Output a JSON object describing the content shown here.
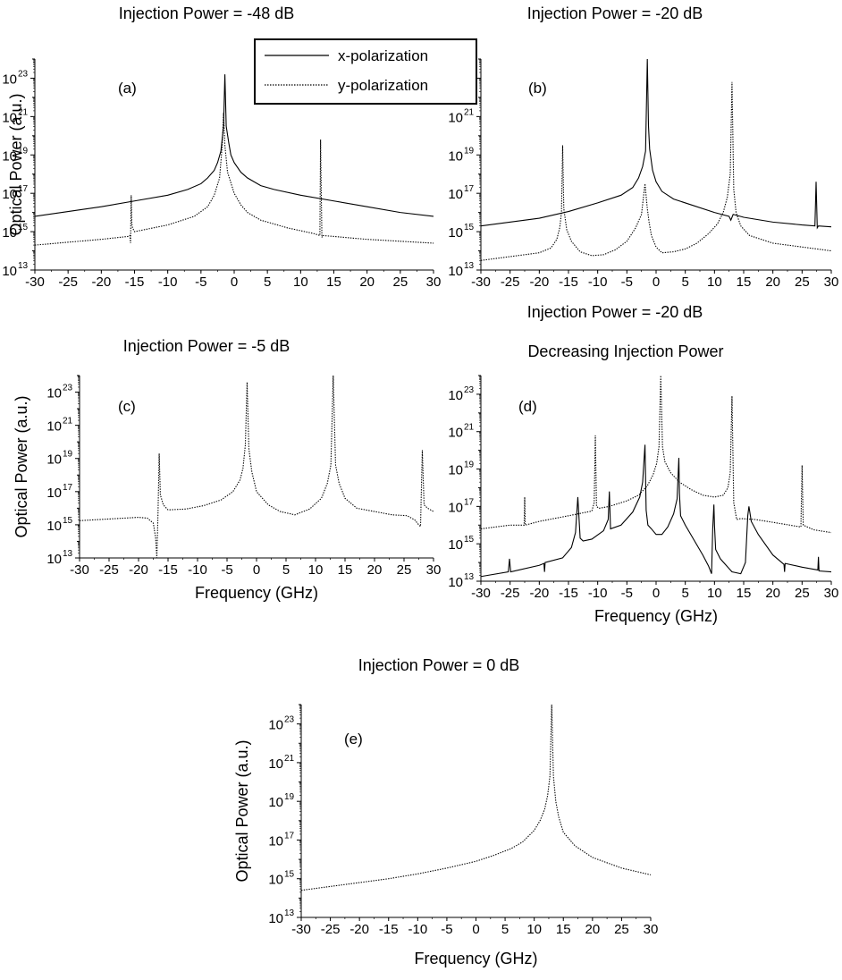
{
  "figure": {
    "legend": {
      "entries": [
        {
          "label": "x-polarization",
          "style": "solid"
        },
        {
          "label": "y-polarization",
          "style": "dotted"
        }
      ]
    }
  },
  "chart_data": [
    {
      "id": "a",
      "type": "line",
      "title": "Injection Power = -48 dB",
      "panel_label": "(a)",
      "ylabel": "Optical Power (a.u.)",
      "xlabel": "",
      "xlim": [
        -30,
        30
      ],
      "ylim_log10": [
        13,
        24
      ],
      "xticks": [
        -30,
        -25,
        -20,
        -15,
        -10,
        -5,
        0,
        5,
        10,
        15,
        20,
        25,
        30
      ],
      "yticks": [
        "10^13",
        "10^15",
        "10^17",
        "10^19",
        "10^21",
        "10^23"
      ],
      "scale": "log",
      "series": [
        {
          "name": "x-polarization",
          "style": "solid",
          "x": [
            -30,
            -25,
            -20,
            -15,
            -10,
            -7,
            -5,
            -4,
            -3,
            -2.5,
            -2,
            -1.6,
            -1.4,
            -1.2,
            -0.8,
            -0.5,
            0,
            1,
            2,
            4,
            6,
            10,
            15,
            20,
            25,
            30
          ],
          "log10_y": [
            15.8,
            16.05,
            16.3,
            16.6,
            16.9,
            17.2,
            17.5,
            17.8,
            18.2,
            18.6,
            19.2,
            20.5,
            23.2,
            20.5,
            19.6,
            19.0,
            18.6,
            18.1,
            17.8,
            17.4,
            17.2,
            16.9,
            16.6,
            16.3,
            16.0,
            15.8
          ]
        },
        {
          "name": "y-polarization",
          "style": "dotted",
          "x": [
            -30,
            -20,
            -16,
            -15.7,
            -15.6,
            -15.5,
            -15.4,
            -15.3,
            -15,
            -10,
            -6,
            -4,
            -3,
            -2.2,
            -1.8,
            -1.6,
            -1.4,
            -1.0,
            0,
            1,
            2,
            4,
            8,
            12,
            12.9,
            13,
            13.1,
            13.2,
            13.3,
            15,
            20,
            25,
            30
          ],
          "log10_y": [
            14.3,
            14.6,
            14.75,
            14.8,
            14.4,
            16.9,
            15.4,
            15.2,
            15.0,
            15.35,
            15.8,
            16.3,
            16.9,
            17.8,
            19.5,
            21.2,
            19.5,
            18.1,
            17.0,
            16.4,
            16.0,
            15.6,
            15.2,
            14.9,
            14.8,
            19.8,
            17.2,
            14.7,
            14.8,
            14.75,
            14.6,
            14.5,
            14.4
          ]
        }
      ]
    },
    {
      "id": "b",
      "type": "line",
      "title": "Injection Power = -20 dB",
      "panel_label": "(b)",
      "ylabel": "",
      "xlabel": "",
      "xlim": [
        -30,
        30
      ],
      "ylim_log10": [
        13,
        24
      ],
      "xticks": [
        -30,
        -25,
        -20,
        -15,
        -10,
        -5,
        0,
        5,
        10,
        15,
        20,
        25,
        30
      ],
      "yticks": [
        "10^13",
        "10^15",
        "10^17",
        "10^19",
        "10^21",
        "10^23"
      ],
      "scale": "log",
      "series": [
        {
          "name": "x-polarization",
          "style": "solid",
          "x": [
            -30,
            -20,
            -15,
            -10,
            -6,
            -4,
            -3,
            -2.3,
            -1.8,
            -1.5,
            -1.3,
            -1.1,
            -0.6,
            0,
            1,
            3,
            6,
            10,
            12.5,
            12.8,
            13.2,
            15,
            20,
            25,
            27.2,
            27.4,
            27.6,
            27.8,
            30
          ],
          "log10_y": [
            15.3,
            15.7,
            16.05,
            16.5,
            16.9,
            17.3,
            17.8,
            18.4,
            19.2,
            24.0,
            20.5,
            19.3,
            18.2,
            17.6,
            17.1,
            16.7,
            16.4,
            16.0,
            15.8,
            15.6,
            15.9,
            15.75,
            15.5,
            15.35,
            15.3,
            17.6,
            15.2,
            15.3,
            15.25
          ]
        },
        {
          "name": "y-polarization",
          "style": "dotted",
          "x": [
            -30,
            -25,
            -20,
            -18,
            -17,
            -16.5,
            -16.2,
            -16,
            -15.8,
            -15.3,
            -14.5,
            -13,
            -11,
            -9,
            -7,
            -5,
            -3.5,
            -2.5,
            -1.9,
            -1.5,
            -1.2,
            -0.8,
            0,
            1,
            3,
            5,
            7,
            9,
            10.5,
            11.5,
            12.2,
            12.7,
            13,
            13.3,
            13.7,
            14.5,
            16,
            18,
            20,
            25,
            30
          ],
          "log10_y": [
            13.5,
            13.7,
            13.9,
            14.15,
            14.6,
            15.2,
            16.0,
            19.5,
            16.2,
            15.1,
            14.5,
            13.95,
            13.75,
            13.8,
            14.05,
            14.5,
            15.2,
            15.9,
            17.5,
            16.2,
            15.5,
            14.8,
            14.2,
            13.9,
            13.95,
            14.1,
            14.4,
            14.9,
            15.4,
            16.0,
            16.8,
            18.0,
            22.8,
            17.2,
            16.0,
            15.3,
            14.8,
            14.6,
            14.4,
            14.2,
            14.0
          ]
        }
      ]
    },
    {
      "id": "c",
      "type": "line",
      "title": "Injection Power = -5 dB",
      "panel_label": "(c)",
      "ylabel": "Optical Power (a.u.)",
      "xlabel": "Frequency (GHz)",
      "xlim": [
        -30,
        30
      ],
      "ylim_log10": [
        13,
        24
      ],
      "xticks": [
        -30,
        -25,
        -20,
        -15,
        -10,
        -5,
        0,
        5,
        10,
        15,
        20,
        25,
        30
      ],
      "yticks": [
        "10^13",
        "10^15",
        "10^17",
        "10^19",
        "10^21",
        "10^23"
      ],
      "scale": "log",
      "series": [
        {
          "name": "y-polarization",
          "style": "dotted",
          "x": [
            -30,
            -25,
            -20,
            -18.5,
            -17.5,
            -17.1,
            -16.9,
            -16.7,
            -16.5,
            -16.3,
            -15.8,
            -15,
            -12,
            -9,
            -6,
            -4,
            -2.8,
            -2.3,
            -1.9,
            -1.6,
            -1.3,
            -0.8,
            0,
            2,
            4,
            6.5,
            9,
            11,
            12,
            12.6,
            13,
            13.4,
            14,
            15,
            17,
            20,
            23,
            25.5,
            26.8,
            27.5,
            27.8,
            28.1,
            28.4,
            29,
            30
          ],
          "log10_y": [
            15.25,
            15.35,
            15.45,
            15.4,
            15.1,
            14.2,
            13.0,
            15.7,
            19.3,
            16.8,
            16.2,
            15.9,
            15.95,
            16.15,
            16.5,
            17.0,
            17.7,
            18.4,
            19.8,
            23.6,
            19.6,
            18.2,
            17.0,
            16.2,
            15.8,
            15.6,
            15.95,
            16.6,
            17.5,
            18.6,
            24.0,
            18.6,
            17.5,
            16.6,
            16.0,
            15.8,
            15.6,
            15.55,
            15.3,
            15.0,
            14.9,
            19.5,
            16.2,
            16.0,
            15.8
          ]
        }
      ]
    },
    {
      "id": "d",
      "type": "line",
      "title": "Injection Power = -20 dB",
      "subtitle": "Decreasing Injection Power",
      "panel_label": "(d)",
      "ylabel": "",
      "xlabel": "Frequency (GHz)",
      "xlim": [
        -30,
        30
      ],
      "ylim_log10": [
        13,
        24
      ],
      "xticks": [
        -30,
        -25,
        -20,
        -15,
        -10,
        -5,
        0,
        5,
        10,
        15,
        20,
        25,
        30
      ],
      "yticks": [
        "10^13",
        "10^15",
        "10^17",
        "10^19",
        "10^21",
        "10^23"
      ],
      "scale": "log",
      "series": [
        {
          "name": "x-polarization",
          "style": "solid",
          "x": [
            -30,
            -25.3,
            -25.1,
            -24.9,
            -20,
            -19.2,
            -19.1,
            -19.0,
            -16,
            -14.5,
            -13.8,
            -13.4,
            -13.0,
            -12.5,
            -11,
            -9,
            -8.2,
            -8.0,
            -7.8,
            -6,
            -4,
            -2.8,
            -2.3,
            -1.9,
            -1.7,
            -1.4,
            -0.8,
            0,
            1,
            2,
            3,
            3.6,
            3.9,
            4.0,
            4.2,
            5,
            6.5,
            8,
            9,
            9.5,
            9.7,
            9.9,
            10.0,
            10.2,
            11,
            13,
            14.5,
            15.3,
            15.7,
            15.9,
            16.3,
            17.5,
            20,
            21.9,
            22.0,
            22.1,
            25,
            27.7,
            27.8,
            27.9,
            30
          ],
          "log10_y": [
            13.25,
            13.5,
            14.2,
            13.5,
            13.85,
            13.95,
            13.5,
            14.0,
            14.25,
            14.8,
            15.6,
            17.5,
            15.3,
            15.15,
            15.25,
            15.7,
            16.3,
            17.8,
            15.8,
            16.0,
            16.7,
            17.5,
            18.3,
            20.3,
            16.8,
            16.0,
            15.8,
            15.5,
            15.5,
            15.9,
            16.6,
            17.4,
            19.6,
            17.7,
            16.5,
            16.0,
            15.2,
            14.4,
            13.8,
            13.4,
            15.8,
            17.1,
            16.0,
            14.7,
            14.2,
            13.5,
            13.4,
            14.0,
            16.5,
            17.0,
            16.2,
            15.5,
            14.4,
            13.9,
            13.5,
            13.95,
            13.75,
            13.6,
            14.3,
            13.55,
            13.5
          ]
        },
        {
          "name": "y-polarization",
          "style": "dotted",
          "x": [
            -30,
            -25,
            -22.6,
            -22.5,
            -22.4,
            -20,
            -15,
            -11,
            -10.6,
            -10.4,
            -10.2,
            -9.8,
            -8,
            -5,
            -3,
            -1.5,
            -0.5,
            0.1,
            0.5,
            0.8,
            1.1,
            1.5,
            2.5,
            4,
            6,
            8,
            10,
            11.5,
            12.3,
            12.7,
            13.0,
            13.3,
            13.8,
            14.5,
            17,
            20,
            24.8,
            25.0,
            25.2,
            27,
            30
          ],
          "log10_y": [
            15.8,
            16.0,
            16.0,
            17.5,
            16.0,
            16.2,
            16.5,
            16.75,
            17.2,
            20.8,
            17.0,
            16.9,
            17.0,
            17.3,
            17.6,
            18.1,
            18.7,
            19.3,
            20.2,
            24.0,
            20.2,
            19.4,
            18.8,
            18.3,
            17.9,
            17.6,
            17.5,
            17.6,
            18.0,
            18.8,
            22.9,
            17.2,
            16.3,
            16.35,
            16.3,
            16.15,
            15.9,
            19.2,
            16.0,
            15.75,
            15.6
          ]
        }
      ]
    },
    {
      "id": "e",
      "type": "line",
      "title": "Injection Power = 0 dB",
      "panel_label": "(e)",
      "ylabel": "Optical Power (a.u.)",
      "xlabel": "Frequency (GHz)",
      "xlim": [
        -30,
        30
      ],
      "ylim_log10": [
        13,
        24
      ],
      "xticks": [
        -30,
        -25,
        -20,
        -15,
        -10,
        -5,
        0,
        5,
        10,
        15,
        20,
        25,
        30
      ],
      "yticks": [
        "10^13",
        "10^15",
        "10^17",
        "10^19",
        "10^21",
        "10^23"
      ],
      "scale": "log",
      "series": [
        {
          "name": "y-polarization",
          "style": "dotted",
          "x": [
            -30,
            -25,
            -20,
            -15,
            -10,
            -5,
            0,
            3,
            6,
            8,
            10,
            11,
            11.8,
            12.3,
            12.7,
            13.0,
            13.3,
            13.7,
            14.2,
            15,
            17,
            20,
            25,
            30
          ],
          "log10_y": [
            14.4,
            14.6,
            14.8,
            15.0,
            15.25,
            15.55,
            15.9,
            16.2,
            16.55,
            16.9,
            17.5,
            18.0,
            18.6,
            19.3,
            20.3,
            24.0,
            20.3,
            19.0,
            18.2,
            17.4,
            16.7,
            16.1,
            15.55,
            15.2
          ]
        }
      ]
    }
  ]
}
